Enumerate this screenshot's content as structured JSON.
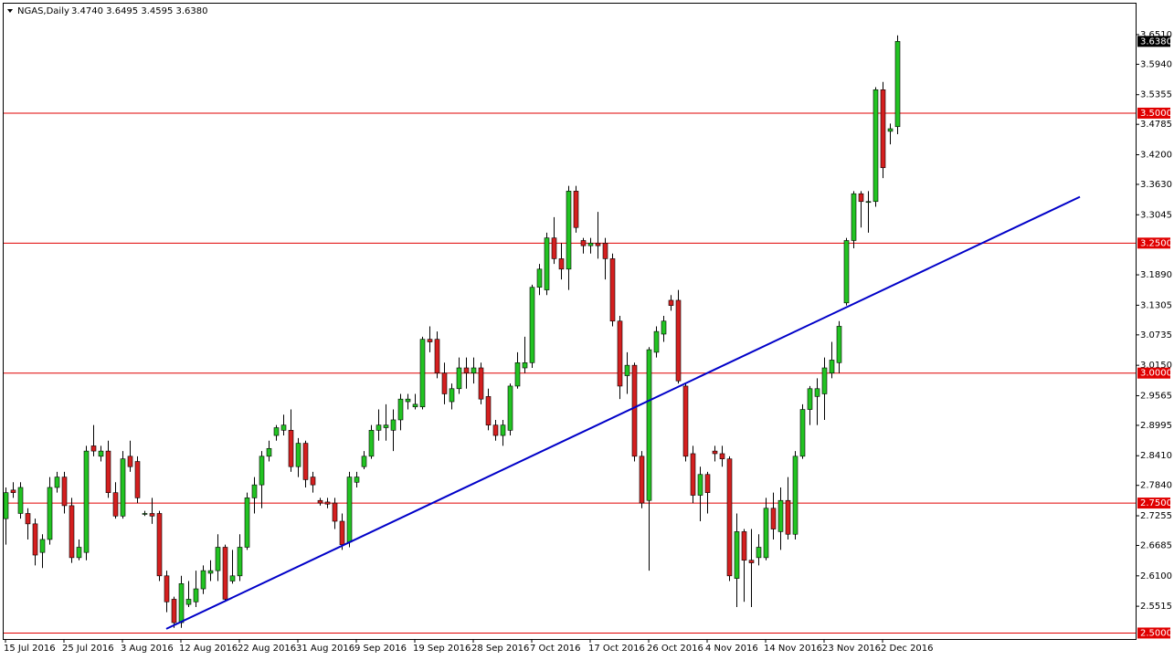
{
  "chart_data": {
    "type": "candlestick",
    "title": "NGAS,Daily",
    "ohlc_label": "3.4740 3.6495 3.4595 3.6380",
    "categories": [
      "15 Jul 2016",
      null,
      null,
      null,
      null,
      null,
      null,
      null,
      "25 Jul 2016",
      null,
      null,
      null,
      null,
      null,
      null,
      null,
      "3 Aug 2016",
      null,
      null,
      null,
      null,
      null,
      null,
      null,
      "12 Aug 2016",
      null,
      null,
      null,
      null,
      null,
      null,
      null,
      "22 Aug 2016",
      null,
      null,
      null,
      null,
      null,
      null,
      null,
      "31 Aug 2016",
      null,
      null,
      null,
      null,
      null,
      null,
      null,
      "9 Sep 2016",
      null,
      null,
      null,
      null,
      null,
      null,
      null,
      "19 Sep 2016",
      null,
      null,
      null,
      null,
      null,
      null,
      null,
      "28 Sep 2016",
      null,
      null,
      null,
      null,
      null,
      null,
      null,
      "7 Oct 2016",
      null,
      null,
      null,
      null,
      null,
      null,
      null,
      "17 Oct 2016",
      null,
      null,
      null,
      null,
      null,
      null,
      null,
      "26 Oct 2016",
      null,
      null,
      null,
      null,
      null,
      null,
      null,
      "4 Nov 2016",
      null,
      null,
      null,
      null,
      null,
      null,
      null,
      "14 Nov 2016",
      null,
      null,
      null,
      null,
      null,
      null,
      null,
      "23 Nov 2016",
      null,
      null,
      null,
      null,
      null,
      null,
      null,
      "2 Dec 2016",
      null,
      null
    ],
    "open": [
      2.72,
      2.775,
      2.73,
      2.73,
      2.71,
      2.655,
      2.68,
      2.78,
      2.8,
      2.745,
      2.645,
      2.655,
      2.86,
      2.84,
      2.85,
      2.77,
      2.725,
      2.84,
      2.83,
      2.73,
      2.73,
      2.73,
      2.61,
      2.565,
      2.52,
      2.555,
      2.56,
      2.585,
      2.615,
      2.62,
      2.665,
      2.6,
      2.61,
      2.665,
      2.76,
      2.785,
      2.84,
      2.88,
      2.89,
      2.89,
      2.82,
      2.865,
      2.8,
      2.755,
      2.752,
      2.75,
      2.715,
      2.675,
      2.79,
      2.82,
      2.84,
      2.89,
      2.895,
      2.89,
      2.91,
      2.945,
      2.935,
      2.935,
      3.065,
      3.065,
      3.0,
      2.945,
      2.97,
      3.01,
      3.0,
      3.01,
      2.955,
      2.9,
      2.88,
      2.89,
      2.975,
      3.01,
      3.02,
      3.165,
      3.16,
      3.26,
      3.22,
      3.2,
      3.35,
      3.255,
      3.245,
      3.25,
      3.25,
      3.22,
      3.1,
      2.995,
      3.015,
      2.84,
      2.755,
      3.04,
      3.075,
      3.14,
      3.14,
      2.975,
      2.845,
      2.765,
      2.805,
      2.85,
      2.845,
      2.835,
      2.605,
      2.695,
      2.64,
      2.645,
      2.645,
      2.74,
      2.695,
      2.755,
      2.69,
      2.84,
      2.93,
      2.955,
      2.96,
      3.0,
      3.02,
      3.135,
      3.255,
      3.345,
      3.33,
      3.33,
      3.545,
      3.465,
      3.474
    ],
    "high": [
      2.78,
      2.79,
      2.79,
      2.74,
      2.72,
      2.69,
      2.8,
      2.81,
      2.81,
      2.76,
      2.68,
      2.86,
      2.9,
      2.86,
      2.87,
      2.79,
      2.85,
      2.87,
      2.84,
      2.735,
      2.76,
      2.735,
      2.62,
      2.57,
      2.61,
      2.6,
      2.62,
      2.63,
      2.64,
      2.69,
      2.67,
      2.66,
      2.69,
      2.77,
      2.8,
      2.85,
      2.87,
      2.9,
      2.92,
      2.93,
      2.875,
      2.87,
      2.81,
      2.76,
      2.76,
      2.76,
      2.73,
      2.81,
      2.81,
      2.85,
      2.9,
      2.93,
      2.94,
      2.93,
      2.96,
      2.96,
      2.96,
      3.07,
      3.09,
      3.08,
      3.02,
      2.98,
      3.03,
      3.03,
      3.03,
      3.02,
      2.97,
      2.91,
      2.91,
      2.98,
      3.04,
      3.07,
      3.17,
      3.21,
      3.27,
      3.3,
      3.25,
      3.36,
      3.36,
      3.26,
      3.26,
      3.31,
      3.26,
      3.23,
      3.11,
      3.04,
      3.02,
      2.85,
      3.05,
      3.09,
      3.11,
      3.15,
      3.16,
      2.98,
      2.86,
      2.82,
      2.81,
      2.86,
      2.86,
      2.84,
      2.73,
      2.7,
      2.7,
      2.69,
      2.76,
      2.77,
      2.78,
      2.8,
      2.85,
      2.94,
      2.975,
      2.99,
      3.03,
      3.06,
      3.1,
      3.26,
      3.35,
      3.35,
      3.35,
      3.55,
      3.56,
      3.48,
      3.6495
    ],
    "low": [
      2.67,
      2.76,
      2.72,
      2.68,
      2.63,
      2.625,
      2.67,
      2.77,
      2.73,
      2.635,
      2.64,
      2.64,
      2.84,
      2.83,
      2.76,
      2.72,
      2.72,
      2.81,
      2.75,
      2.725,
      2.71,
      2.6,
      2.54,
      2.51,
      2.51,
      2.55,
      2.55,
      2.575,
      2.6,
      2.6,
      2.56,
      2.595,
      2.6,
      2.66,
      2.73,
      2.74,
      2.83,
      2.87,
      2.88,
      2.81,
      2.8,
      2.78,
      2.77,
      2.745,
      2.74,
      2.7,
      2.66,
      2.665,
      2.78,
      2.815,
      2.835,
      2.87,
      2.87,
      2.85,
      2.89,
      2.93,
      2.93,
      2.93,
      3.04,
      2.99,
      2.94,
      2.93,
      2.96,
      2.97,
      2.98,
      2.94,
      2.89,
      2.87,
      2.86,
      2.88,
      2.97,
      3.0,
      3.01,
      3.15,
      3.15,
      3.21,
      3.18,
      3.16,
      3.27,
      3.23,
      3.23,
      3.22,
      3.18,
      3.09,
      2.95,
      2.96,
      2.83,
      2.74,
      2.62,
      3.03,
      3.06,
      3.12,
      2.98,
      2.83,
      2.75,
      2.715,
      2.73,
      2.83,
      2.82,
      2.6,
      2.55,
      2.56,
      2.55,
      2.63,
      2.64,
      2.68,
      2.66,
      2.68,
      2.68,
      2.835,
      2.9,
      2.9,
      2.91,
      2.99,
      3.0,
      3.13,
      3.24,
      3.28,
      3.27,
      3.32,
      3.375,
      3.44,
      3.4595
    ],
    "close": [
      2.77,
      2.77,
      2.78,
      2.71,
      2.65,
      2.68,
      2.78,
      2.8,
      2.745,
      2.645,
      2.665,
      2.85,
      2.85,
      2.85,
      2.77,
      2.725,
      2.835,
      2.82,
      2.76,
      2.73,
      2.725,
      2.61,
      2.56,
      2.52,
      2.595,
      2.565,
      2.585,
      2.62,
      2.62,
      2.665,
      2.565,
      2.61,
      2.665,
      2.76,
      2.785,
      2.84,
      2.855,
      2.895,
      2.9,
      2.82,
      2.865,
      2.795,
      2.785,
      2.75,
      2.748,
      2.715,
      2.67,
      2.8,
      2.8,
      2.84,
      2.89,
      2.9,
      2.9,
      2.91,
      2.95,
      2.95,
      2.94,
      3.065,
      3.06,
      3.0,
      2.96,
      2.97,
      3.01,
      3.0,
      3.01,
      2.95,
      2.9,
      2.88,
      2.9,
      2.975,
      3.02,
      3.02,
      3.165,
      3.2,
      3.26,
      3.22,
      3.2,
      3.35,
      3.28,
      3.245,
      3.25,
      3.245,
      3.22,
      3.1,
      2.975,
      3.015,
      2.84,
      2.75,
      3.045,
      3.08,
      3.1,
      3.13,
      2.985,
      2.84,
      2.765,
      2.805,
      2.77,
      2.845,
      2.835,
      2.61,
      2.695,
      2.64,
      2.635,
      2.665,
      2.74,
      2.7,
      2.755,
      2.69,
      2.84,
      2.93,
      2.97,
      2.97,
      3.01,
      3.025,
      3.09,
      3.255,
      3.345,
      3.33,
      3.33,
      3.545,
      3.395,
      3.47,
      3.638
    ],
    "up_color": "#22c322",
    "down_color": "#d41f1f",
    "ylim": [
      2.4885,
      3.7106
    ],
    "yticks": [
      {
        "value": 3.651,
        "label": "3.6510"
      },
      {
        "value": 3.594,
        "label": "3.5940"
      },
      {
        "value": 3.5355,
        "label": "3.5355"
      },
      {
        "value": 3.4785,
        "label": "3.4785"
      },
      {
        "value": 3.42,
        "label": "3.4200"
      },
      {
        "value": 3.363,
        "label": "3.3630"
      },
      {
        "value": 3.3045,
        "label": "3.3045"
      },
      {
        "value": 3.189,
        "label": "3.1890"
      },
      {
        "value": 3.1305,
        "label": "3.1305"
      },
      {
        "value": 3.0735,
        "label": "3.0735"
      },
      {
        "value": 3.015,
        "label": "3.0150"
      },
      {
        "value": 2.9565,
        "label": "2.9565"
      },
      {
        "value": 2.8995,
        "label": "2.8995"
      },
      {
        "value": 2.841,
        "label": "2.8410"
      },
      {
        "value": 2.784,
        "label": "2.7840"
      },
      {
        "value": 2.7255,
        "label": "2.7255"
      },
      {
        "value": 2.6685,
        "label": "2.6685"
      },
      {
        "value": 2.61,
        "label": "2.6100"
      },
      {
        "value": 2.5515,
        "label": "2.5515"
      }
    ],
    "hlines": [
      {
        "value": 3.5,
        "label": "3.5000"
      },
      {
        "value": 3.25,
        "label": "3.2500"
      },
      {
        "value": 3.0,
        "label": "3.0000"
      },
      {
        "value": 2.75,
        "label": "2.7500"
      },
      {
        "value": 2.5,
        "label": "2.5000"
      }
    ],
    "hline_color": "#e00000",
    "price_label": {
      "value": 3.638,
      "label": "3.6380"
    },
    "trendline": {
      "from_index": 22,
      "from_price": 2.508,
      "to_index": 147,
      "to_price": 3.339,
      "color": "#0000c8"
    }
  }
}
